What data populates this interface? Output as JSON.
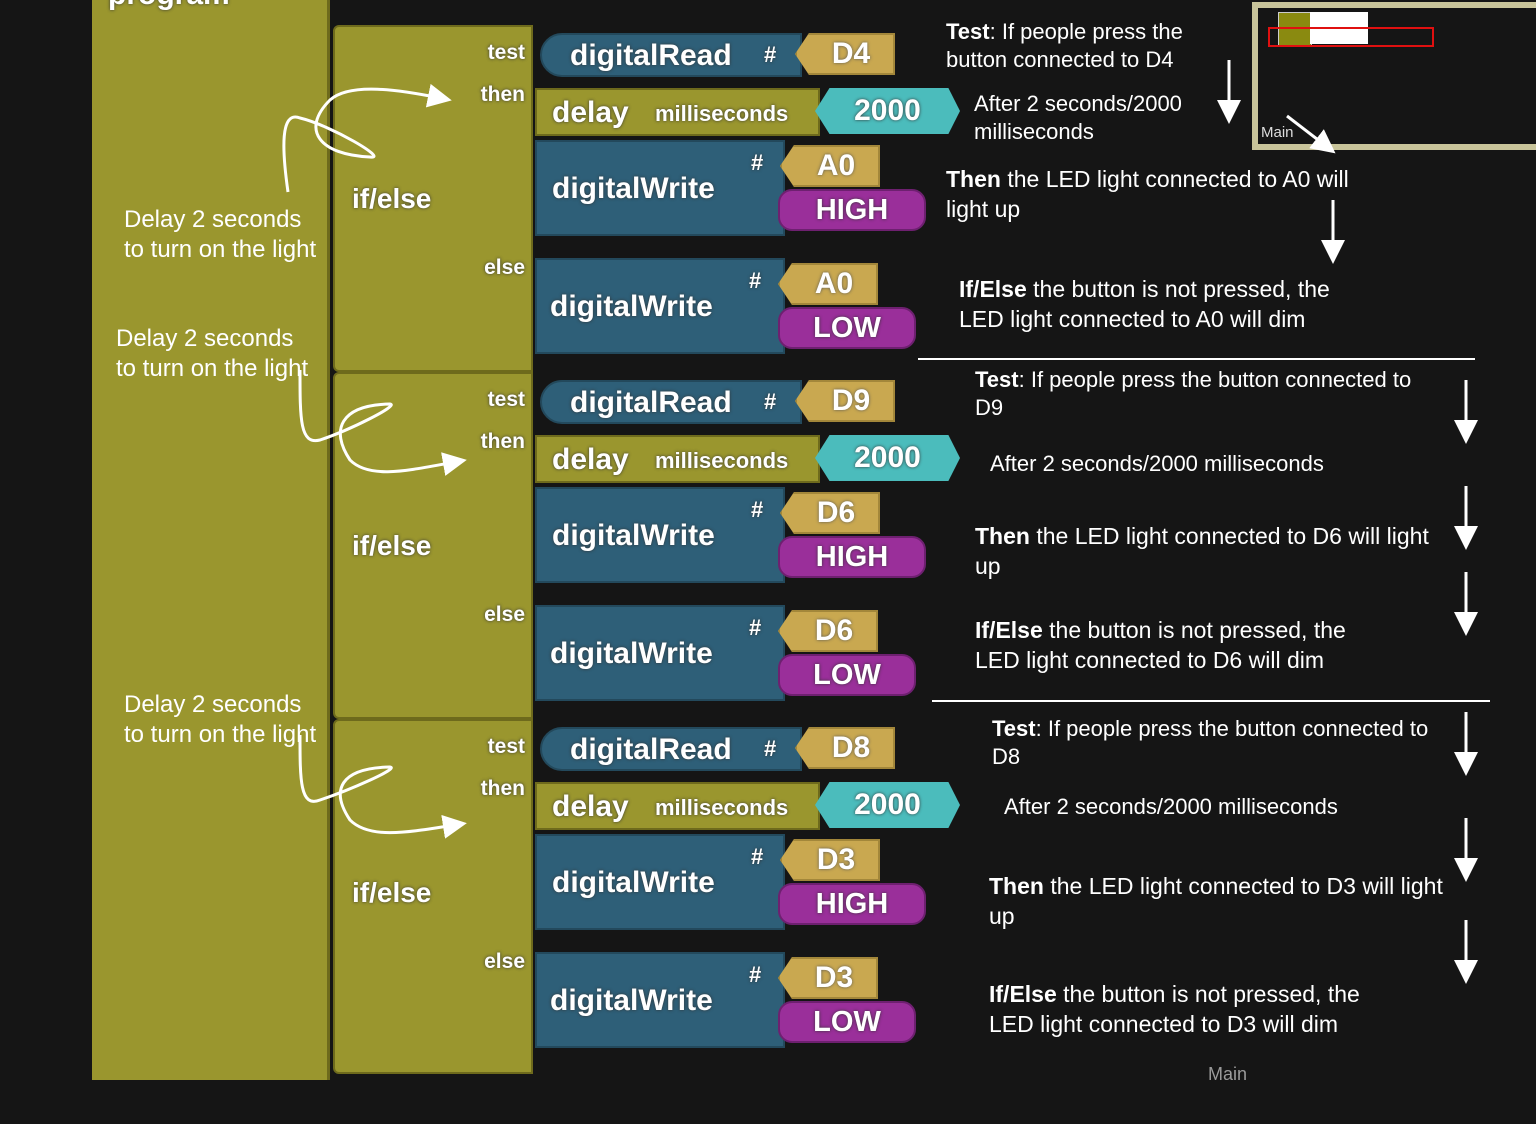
{
  "program_label": "program",
  "colors": {
    "background": "#151515",
    "control": "#9a962e",
    "io_block": "#2e5f78",
    "pin": "#c9a850",
    "state": "#9a2f9a",
    "number": "#4bbcbc"
  },
  "labels": {
    "test": "test",
    "then": "then",
    "else": "else",
    "ifelse": "if/else",
    "digital_read": "digitalRead",
    "digital_write": "digitalWrite",
    "delay": "delay",
    "milliseconds": "milliseconds",
    "hash": "#"
  },
  "groups": [
    {
      "read_pin": "D4",
      "delay_ms": "2000",
      "then_pin": "A0",
      "then_state": "HIGH",
      "else_pin": "A0",
      "else_state": "LOW"
    },
    {
      "read_pin": "D9",
      "delay_ms": "2000",
      "then_pin": "D6",
      "then_state": "HIGH",
      "else_pin": "D6",
      "else_state": "LOW"
    },
    {
      "read_pin": "D8",
      "delay_ms": "2000",
      "then_pin": "D3",
      "then_state": "HIGH",
      "else_pin": "D3",
      "else_state": "LOW"
    }
  ],
  "left_notes": [
    "Delay 2 seconds to turn on the light",
    "Delay 2 seconds to turn on the light",
    "Delay 2 seconds to turn on the light"
  ],
  "notes": [
    {
      "test_bold": "Test",
      "test_text": ": If people press the button connected to D4",
      "after": "After 2 seconds/2000 milliseconds",
      "then_bold": "Then",
      "then_text": " the LED light connected to A0 will light up",
      "else_bold": "If/Else",
      "else_text": " the button is not pressed,  the LED light connected to A0 will dim"
    },
    {
      "test_bold": "Test",
      "test_text": ": If people press the button connected to D9",
      "after": "After 2 seconds/2000 milliseconds",
      "then_bold": "Then",
      "then_text": " the LED light connected to D6 will light up",
      "else_bold": "If/Else",
      "else_text": " the button is not pressed,  the LED light connected to D6 will dim"
    },
    {
      "test_bold": "Test",
      "test_text": ": If people press the button connected to D8",
      "after": "After 2 seconds/2000 milliseconds",
      "then_bold": "Then",
      "then_text": " the LED light connected to D3 will light up",
      "else_bold": "If/Else",
      "else_text": " the button is not pressed,  the LED light connected to D3 will dim"
    }
  ],
  "minimap": {
    "label": "Main"
  },
  "overlay_label": "Main"
}
